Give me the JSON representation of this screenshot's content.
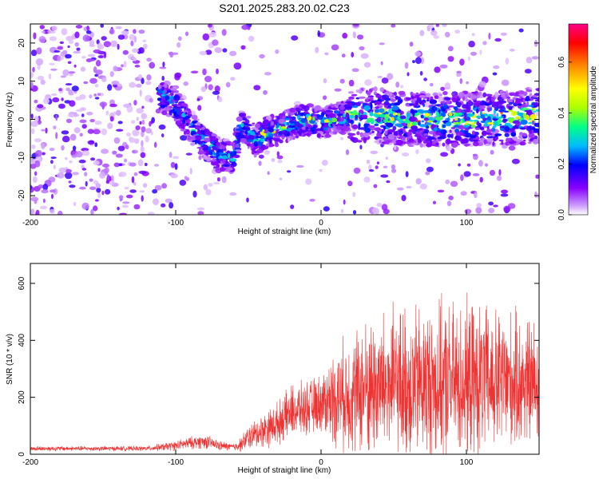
{
  "title": "S201.2025.283.20.02.C23",
  "chart_data": [
    {
      "type": "heatmap",
      "name": "spectrogram",
      "xlabel": "Height of straight line (km)",
      "ylabel": "Frequency (Hz)",
      "xlim": [
        -200,
        150
      ],
      "ylim": [
        -25,
        25
      ],
      "x_ticks": [
        -200,
        -100,
        0,
        100
      ],
      "y_ticks": [
        -20,
        -10,
        0,
        10,
        20
      ],
      "colorbar": {
        "label": "Normalized spectral amplitude",
        "range": [
          0.0,
          0.75
        ],
        "ticks": [
          0.0,
          0.2,
          0.4,
          0.6
        ],
        "tick_labels": [
          "0.0",
          "0.2",
          "0.4",
          "0.6"
        ],
        "colors": [
          "#ffffff",
          "#cc99ff",
          "#8800ff",
          "#0000ff",
          "#00bbff",
          "#00ff88",
          "#aaff00",
          "#ffff00",
          "#ff8800",
          "#ff0000",
          "#ff0088"
        ]
      },
      "signal_track": {
        "x": [
          -110,
          -100,
          -90,
          -80,
          -70,
          -60,
          -55,
          -50,
          -45,
          -40,
          -35,
          -30,
          -20,
          -10,
          0,
          20,
          40,
          60,
          80,
          100,
          120,
          150
        ],
        "freq": [
          6,
          4,
          -2,
          -6,
          -9,
          -10,
          -2,
          -3,
          -6,
          -4,
          -3,
          -3,
          -1,
          0,
          -1,
          1,
          1,
          0,
          0,
          0,
          0,
          1
        ]
      }
    },
    {
      "type": "line",
      "name": "snr",
      "xlabel": "Height of straight line (km)",
      "ylabel": "SNR (10 * v/v)",
      "xlim": [
        -200,
        150
      ],
      "ylim": [
        0,
        670
      ],
      "x_ticks": [
        -200,
        -100,
        0,
        100
      ],
      "y_ticks": [
        0,
        200,
        400,
        600
      ],
      "color": "#ee3333",
      "envelope": {
        "x": [
          -200,
          -120,
          -100,
          -90,
          -80,
          -70,
          -60,
          -55,
          -50,
          -45,
          -40,
          -35,
          -30,
          -25,
          -20,
          -10,
          0,
          10,
          20,
          30,
          40,
          60,
          80,
          100,
          120,
          150
        ],
        "mean": [
          20,
          20,
          30,
          40,
          45,
          30,
          25,
          35,
          60,
          70,
          85,
          95,
          110,
          130,
          150,
          160,
          180,
          200,
          215,
          230,
          240,
          245,
          250,
          255,
          255,
          250
        ],
        "spread": [
          10,
          10,
          20,
          25,
          30,
          20,
          15,
          30,
          50,
          60,
          70,
          80,
          85,
          95,
          110,
          110,
          120,
          200,
          240,
          280,
          300,
          320,
          320,
          320,
          300,
          260
        ]
      }
    }
  ]
}
